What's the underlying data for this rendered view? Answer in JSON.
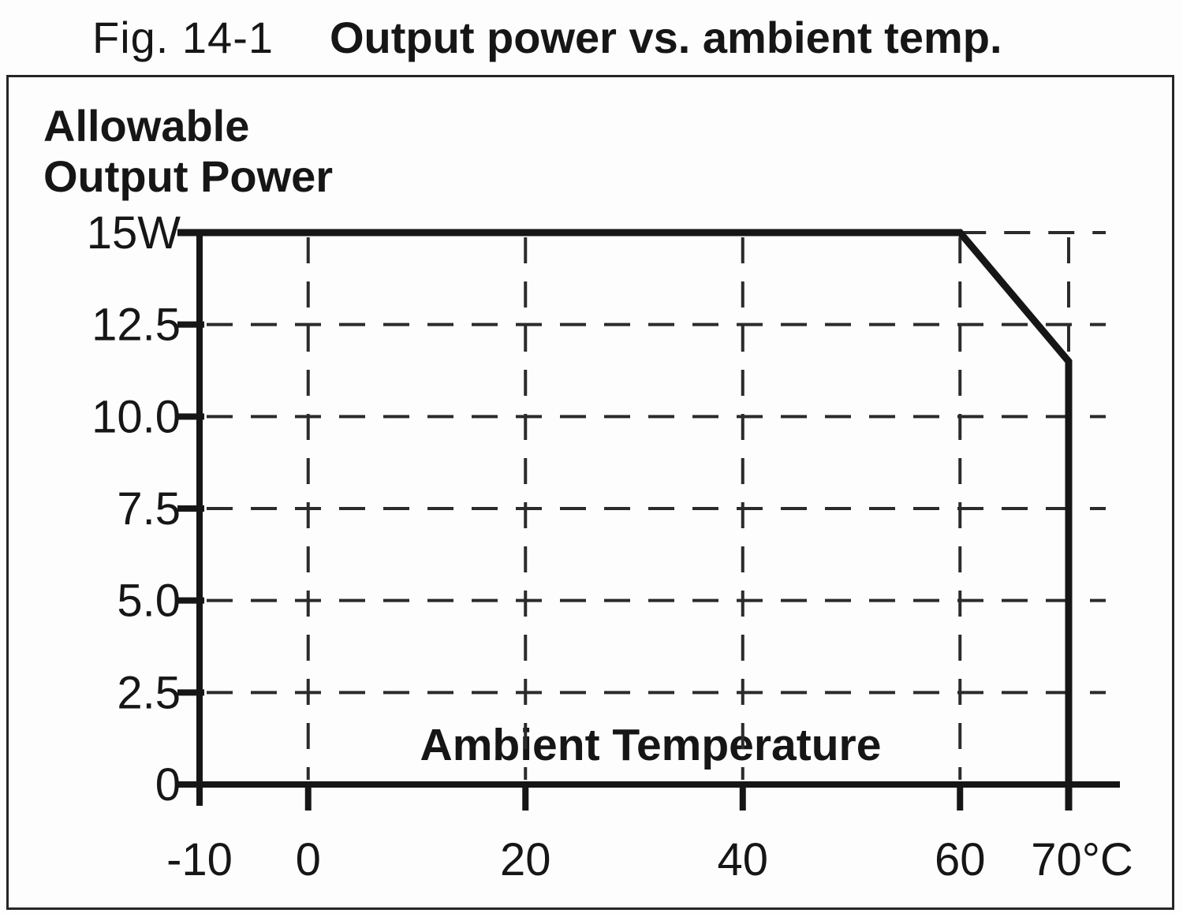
{
  "figure": {
    "label": "Fig. 14-1",
    "title": "Output power vs. ambient temp."
  },
  "chart_data": {
    "type": "line",
    "title": "Output power vs. ambient temp.",
    "xlabel": "Ambient Temperature",
    "ylabel": "Allowable Output Power",
    "ylabel_lines": [
      "Allowable",
      "Output Power"
    ],
    "x_unit": "°C",
    "y_unit": "W",
    "xlim": [
      -10,
      70
    ],
    "ylim": [
      0,
      15
    ],
    "x_ticks": [
      {
        "value": -10,
        "label": "-10"
      },
      {
        "value": 0,
        "label": "0"
      },
      {
        "value": 20,
        "label": "20"
      },
      {
        "value": 40,
        "label": "40"
      },
      {
        "value": 60,
        "label": "60"
      },
      {
        "value": 70,
        "label": "70°C"
      }
    ],
    "y_ticks": [
      {
        "value": 15,
        "label": "15W"
      },
      {
        "value": 12.5,
        "label": "12.5"
      },
      {
        "value": 10,
        "label": "10.0"
      },
      {
        "value": 7.5,
        "label": "7.5"
      },
      {
        "value": 5,
        "label": "5.0"
      },
      {
        "value": 2.5,
        "label": "2.5"
      },
      {
        "value": 0,
        "label": "0"
      }
    ],
    "grid": "dashed",
    "legend": "none",
    "derating_start_x": 60,
    "series": [
      {
        "name": "allowable-output-power",
        "points": [
          [
            -10,
            15
          ],
          [
            60,
            15
          ],
          [
            70,
            11.5
          ],
          [
            70,
            0
          ]
        ]
      }
    ],
    "colors": {
      "line": "#161616",
      "grid": "#2b2b2b",
      "axis": "#161616",
      "background": "#fdfdfd"
    }
  }
}
